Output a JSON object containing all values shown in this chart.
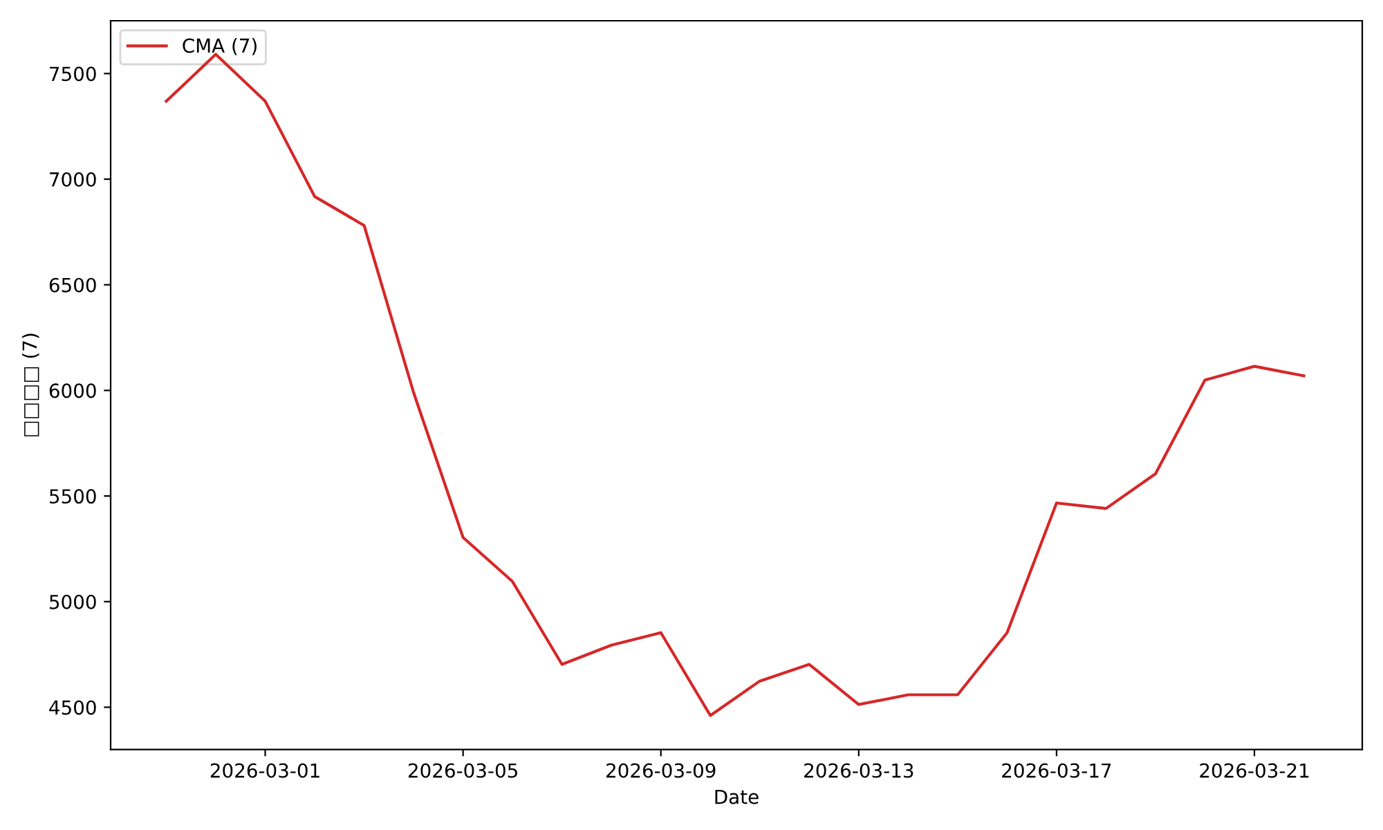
{
  "chart_data": {
    "type": "line",
    "xlabel": "Date",
    "ylabel": "□□□□ (7)",
    "x": [
      "2026-02-27",
      "2026-02-28",
      "2026-03-01",
      "2026-03-02",
      "2026-03-03",
      "2026-03-04",
      "2026-03-05",
      "2026-03-06",
      "2026-03-07",
      "2026-03-08",
      "2026-03-09",
      "2026-03-10",
      "2026-03-11",
      "2026-03-12",
      "2026-03-13",
      "2026-03-14",
      "2026-03-15",
      "2026-03-16",
      "2026-03-17",
      "2026-03-18",
      "2026-03-19",
      "2026-03-20",
      "2026-03-21",
      "2026-03-22"
    ],
    "series": [
      {
        "name": "CMA (7)",
        "color": "#d62728",
        "values": [
          7369,
          7591,
          7369,
          6918,
          6781,
          5990,
          5304,
          5095,
          4703,
          4794,
          4853,
          4461,
          4624,
          4703,
          4513,
          4559,
          4559,
          4853,
          5467,
          5441,
          5605,
          6049,
          6114,
          6069
        ]
      }
    ],
    "xlim": [
      "2026-02-25T21:00",
      "2026-03-23T04:20"
    ],
    "xticks": [
      "2026-03-01",
      "2026-03-05",
      "2026-03-09",
      "2026-03-13",
      "2026-03-17",
      "2026-03-21"
    ],
    "ylim": [
      4300,
      7750
    ],
    "yticks": [
      4500,
      5000,
      5500,
      6000,
      6500,
      7000,
      7500
    ],
    "grid": false,
    "legend": "top left",
    "marker": "none",
    "line_style": "solid"
  }
}
